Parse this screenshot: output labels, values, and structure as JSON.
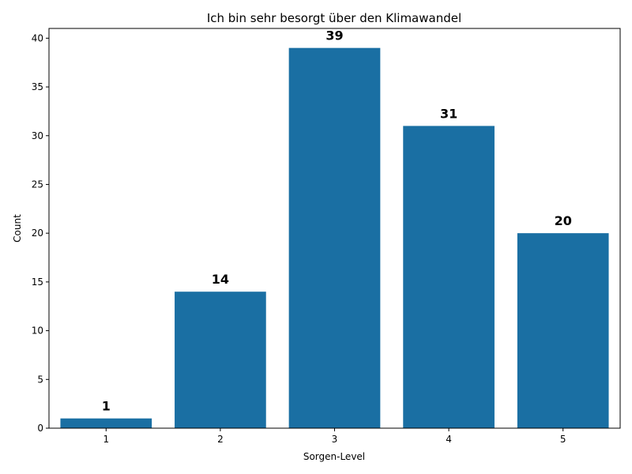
{
  "chart_data": {
    "type": "bar",
    "title": "Ich bin sehr besorgt über den Klimawandel",
    "xlabel": "Sorgen-Level",
    "ylabel": "Count",
    "categories": [
      "1",
      "2",
      "3",
      "4",
      "5"
    ],
    "values": [
      1,
      14,
      39,
      31,
      20
    ],
    "data_labels": [
      "1",
      "14",
      "39",
      "31",
      "20"
    ],
    "ylim": [
      0,
      41
    ],
    "yticks": [
      0,
      5,
      10,
      15,
      20,
      25,
      30,
      35,
      40
    ],
    "ytick_labels": [
      "0",
      "5",
      "10",
      "15",
      "20",
      "25",
      "30",
      "35",
      "40"
    ],
    "grid": false,
    "legend": "none",
    "bar_color": "#1a6fa3"
  }
}
